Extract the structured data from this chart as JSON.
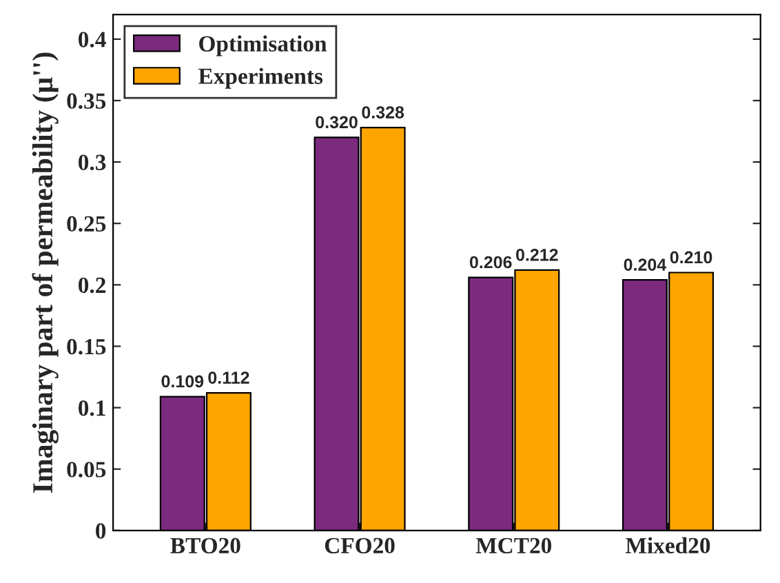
{
  "chart_data": {
    "type": "bar",
    "ylabel": "Imaginary part of permeability (μ'')",
    "categories": [
      "BTO20",
      "CFO20",
      "MCT20",
      "Mixed20"
    ],
    "series": [
      {
        "name": "Optimisation",
        "color": "#7b2a7e",
        "values": [
          0.109,
          0.32,
          0.206,
          0.204
        ],
        "value_labels": [
          "0.109",
          "0.320",
          "0.206",
          "0.204"
        ]
      },
      {
        "name": "Experiments",
        "color": "#ffa500",
        "values": [
          0.112,
          0.328,
          0.212,
          0.21
        ],
        "value_labels": [
          "0.112",
          "0.328",
          "0.212",
          "0.210"
        ]
      }
    ],
    "ylim": [
      0,
      0.42
    ],
    "yticks": [
      0,
      0.05,
      0.1,
      0.15,
      0.2,
      0.25,
      0.3,
      0.35,
      0.4
    ],
    "legend": "top left",
    "grid": false
  }
}
